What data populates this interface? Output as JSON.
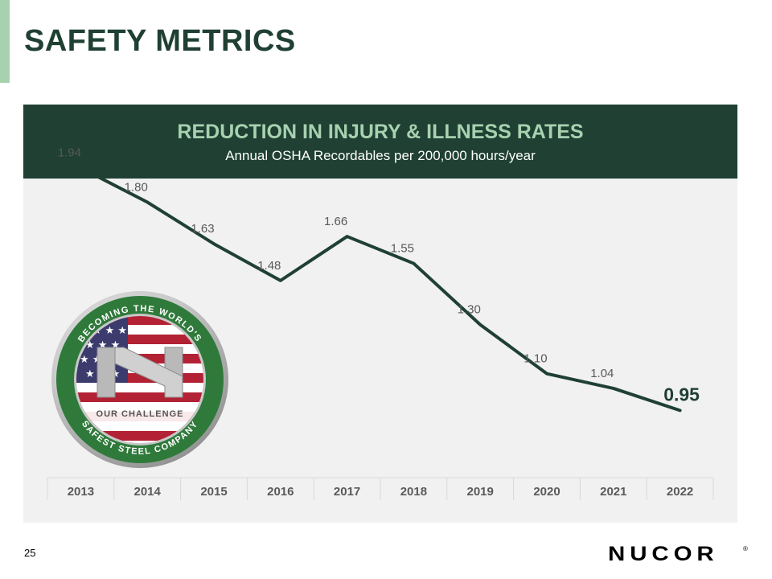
{
  "slide": {
    "title": "SAFETY METRICS",
    "page_number": "25",
    "logo_text": "NUCOR",
    "logo_mark": "®"
  },
  "colors": {
    "dark_green": "#1f4033",
    "light_green": "#a8d1b0",
    "panel_bg": "#f1f1f1",
    "line": "#1f4033",
    "label": "#595959"
  },
  "badge": {
    "top_text": "BECOMING THE WORLD'S",
    "middle_text": "OUR CHALLENGE",
    "bottom_text": "SAFEST STEEL COMPANY"
  },
  "chart_data": {
    "type": "line",
    "title": "REDUCTION IN INJURY & ILLNESS RATES",
    "subtitle": "Annual OSHA Recordables per 200,000 hours/year",
    "categories": [
      "2013",
      "2014",
      "2015",
      "2016",
      "2017",
      "2018",
      "2019",
      "2020",
      "2021",
      "2022"
    ],
    "values": [
      1.94,
      1.8,
      1.63,
      1.48,
      1.66,
      1.55,
      1.3,
      1.1,
      1.04,
      0.95
    ],
    "value_labels": [
      "1.94",
      "1.80",
      "1.63",
      "1.48",
      "1.66",
      "1.55",
      "1.30",
      "1.10",
      "1.04",
      "0.95"
    ],
    "highlight_index": 9,
    "ylim": [
      0.6,
      2.1
    ],
    "xlabel": "",
    "ylabel": "",
    "grid": false
  }
}
